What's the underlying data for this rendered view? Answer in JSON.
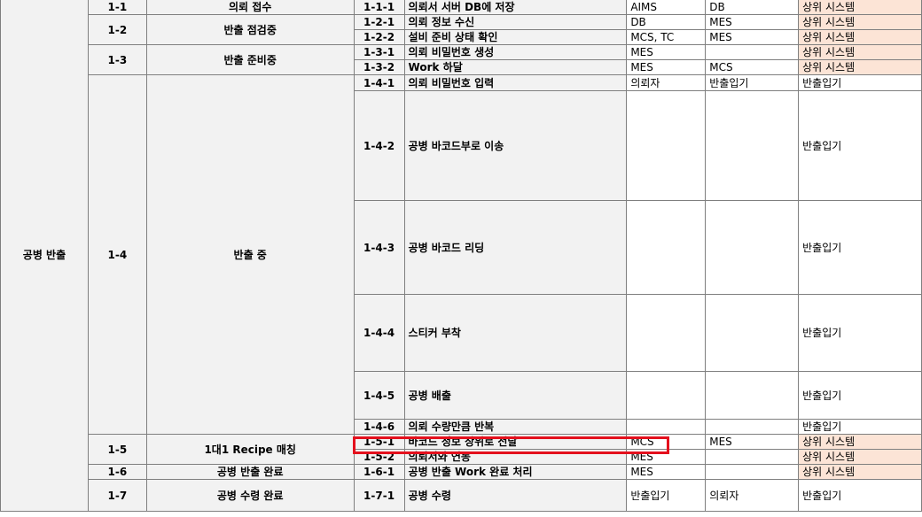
{
  "group": {
    "label": "공병 반출"
  },
  "stages": [
    {
      "id": "1-1",
      "name": "의뢰 접수"
    },
    {
      "id": "1-2",
      "name": "반출 점검중"
    },
    {
      "id": "1-3",
      "name": "반출 준비중"
    },
    {
      "id": "1-4",
      "name": "반출 중"
    },
    {
      "id": "1-5",
      "name": "1대1 Recipe 매칭"
    },
    {
      "id": "1-6",
      "name": "공병 반출 완료"
    },
    {
      "id": "1-7",
      "name": "공병 수령 완료"
    }
  ],
  "steps": [
    {
      "id": "1-1-1",
      "name": "의뢰서 서버 DB에 저장",
      "c1": "AIMS",
      "c2": "DB",
      "c3": "상위 시스템"
    },
    {
      "id": "1-2-1",
      "name": "의뢰 정보 수신",
      "c1": "DB",
      "c2": "MES",
      "c3": "상위 시스템"
    },
    {
      "id": "1-2-2",
      "name": "설비 준비 상태 확인",
      "c1": "MCS, TC",
      "c2": "MES",
      "c3": "상위 시스템"
    },
    {
      "id": "1-3-1",
      "name": "의뢰 비밀번호 생성",
      "c1": "MES",
      "c2": "",
      "c3": "상위 시스템"
    },
    {
      "id": "1-3-2",
      "name": "Work 하달",
      "c1": "MES",
      "c2": "MCS",
      "c3": "상위 시스템"
    },
    {
      "id": "1-4-1",
      "name": "의뢰 비밀번호 입력",
      "c1": "의뢰자",
      "c2": "반출입기",
      "c3": "반출입기"
    },
    {
      "id": "1-4-2",
      "name": "공병 바코드부로 이송",
      "c1": "",
      "c2": "",
      "c3": "반출입기"
    },
    {
      "id": "1-4-3",
      "name": "공병 바코드 리딩",
      "c1": "",
      "c2": "",
      "c3": "반출입기"
    },
    {
      "id": "1-4-4",
      "name": "스티커 부착",
      "c1": "",
      "c2": "",
      "c3": "반출입기"
    },
    {
      "id": "1-4-5",
      "name": "공병 배출",
      "c1": "",
      "c2": "",
      "c3": "반출입기"
    },
    {
      "id": "1-4-6",
      "name": "의뢰 수량만큼 반복",
      "c1": "",
      "c2": "",
      "c3": "반출입기"
    },
    {
      "id": "1-5-1",
      "name": "바코드 정보 상위로 전달",
      "c1": "MCS",
      "c2": "MES",
      "c3": "상위 시스템"
    },
    {
      "id": "1-5-2",
      "name": "의뢰서와 연동",
      "c1": "MES",
      "c2": "",
      "c3": "상위 시스템"
    },
    {
      "id": "1-6-1",
      "name": "공병 반출 Work 완료 처리",
      "c1": "MES",
      "c2": "",
      "c3": "상위 시스템"
    },
    {
      "id": "1-7-1",
      "name": "공병 수령",
      "c1": "반출입기",
      "c2": "의뢰자",
      "c3": "반출입기"
    }
  ],
  "colors": {
    "highlight_fill": "#fce4d6",
    "gray_fill": "#f2f2f2",
    "red_box": "#e4101d"
  }
}
